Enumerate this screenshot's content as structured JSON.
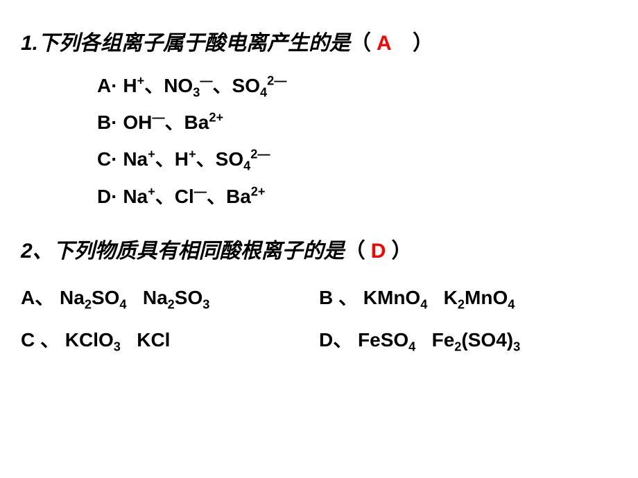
{
  "colors": {
    "text": "#000000",
    "answer": "#ff0000",
    "background": "#ffffff"
  },
  "typography": {
    "stem_fontsize": 30,
    "option_fontsize": 28,
    "font_weight": "bold",
    "stem_style": "italic"
  },
  "q1": {
    "number": "1.",
    "stem": "下列各组离子属于酸电离产生的是",
    "answer": "A",
    "options": {
      "A": {
        "label": "A·",
        "parts": [
          "H",
          "sup+",
          "sep、",
          "NO",
          "sub3",
          "sup—",
          "sep、",
          "SO",
          "sub4",
          "sup2—"
        ]
      },
      "B": {
        "label": "B·",
        "parts": [
          "OH",
          "sup—",
          "sep、",
          "Ba",
          "sup2+"
        ]
      },
      "C": {
        "label": "C·",
        "parts": [
          "Na",
          "sup+",
          "sep、",
          "H",
          "sup+",
          "sep、",
          "SO",
          "sub4",
          "sup2—"
        ]
      },
      "D": {
        "label": "D·",
        "parts": [
          "Na",
          "sup+",
          "sep、",
          "Cl",
          "sup—",
          "sep、",
          "Ba",
          "sup2+"
        ]
      }
    }
  },
  "q2": {
    "number": "2、",
    "stem": "下列物质具有相同酸根离子的是",
    "answer": "D",
    "options": {
      "A": {
        "label": "A、",
        "parts": [
          "Na",
          "sub2",
          "SO",
          "sub4",
          "gap",
          "Na",
          "sub2",
          "SO",
          "sub3"
        ]
      },
      "B": {
        "label": "B 、",
        "parts": [
          "KMnO",
          "sub4",
          "gap",
          "K",
          "sub2",
          "MnO",
          "sub4"
        ]
      },
      "C": {
        "label": "C 、",
        "parts": [
          "KClO",
          "sub3",
          "gap",
          "KCl"
        ]
      },
      "D": {
        "label": "D、",
        "parts": [
          "FeSO",
          "sub4",
          "gap",
          "Fe",
          "sub2",
          "(SO4)",
          "sub3"
        ]
      }
    }
  }
}
